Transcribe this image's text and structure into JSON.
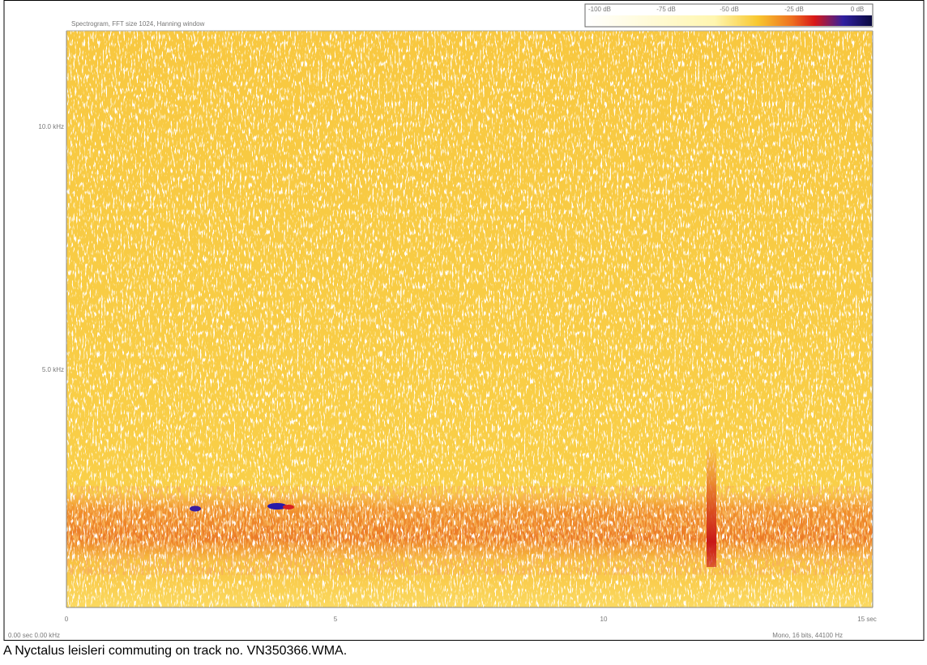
{
  "figure": {
    "title": "Spectrogram, FFT size 1024, Hanning window",
    "y_axis_labels": [
      "10.0 kHz",
      "5.0 kHz"
    ],
    "x_axis_labels": [
      "0",
      "5",
      "10",
      "15 sec"
    ],
    "colorbar_labels": [
      "-100 dB",
      "-75 dB",
      "-50 dB",
      "-25 dB",
      "0 dB"
    ],
    "status_left": "0.00 sec  0.00 kHz",
    "status_right": "Mono, 16 bits, 44100 Hz"
  },
  "caption": "A Nyctalus leisleri commuting on track no. VN350366.WMA."
}
